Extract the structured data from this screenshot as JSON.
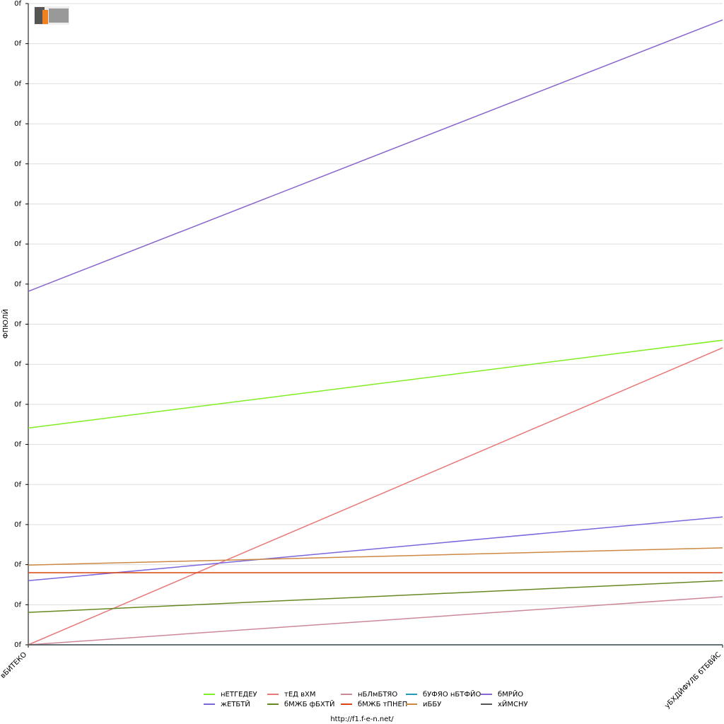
{
  "chart_data": {
    "type": "line",
    "y_label": "ФПЮЛЙ",
    "footer": "http://f1.f-e-n.net/",
    "categories": [
      "вБИТЕКО",
      "уБХДЙФУЛБ бТБВЙС"
    ],
    "ylim": [
      0,
      16
    ],
    "yticks": [
      {
        "value": 0,
        "label": "0f"
      },
      {
        "value": 1,
        "label": "0f"
      },
      {
        "value": 2,
        "label": "0f"
      },
      {
        "value": 3,
        "label": "0f"
      },
      {
        "value": 4,
        "label": "0f"
      },
      {
        "value": 5,
        "label": "0f"
      },
      {
        "value": 6,
        "label": "0f"
      },
      {
        "value": 7,
        "label": "0f"
      },
      {
        "value": 8,
        "label": "0f"
      },
      {
        "value": 9,
        "label": "0f"
      },
      {
        "value": 10,
        "label": "0f"
      },
      {
        "value": 11,
        "label": "0f"
      },
      {
        "value": 12,
        "label": "0f"
      },
      {
        "value": 13,
        "label": "0f"
      },
      {
        "value": 14,
        "label": "0f"
      },
      {
        "value": 15,
        "label": "0f"
      },
      {
        "value": 16,
        "label": "0f"
      }
    ],
    "grid": true,
    "series": [
      {
        "name": "нЕТГЕДЕУ",
        "color": "#80ee22",
        "values": [
          5.41,
          7.6
        ]
      },
      {
        "name": "тЕД вХМ",
        "color": "#e87878",
        "values": [
          0,
          7.41
        ]
      },
      {
        "name": "нБЛмБТЯО",
        "color": "#cc8899",
        "values": [
          0,
          1.2
        ]
      },
      {
        "name": "бУФЯО нБТФЙО",
        "color": "#2299bb",
        "values": [
          0,
          0
        ]
      },
      {
        "name": "бМРЙО",
        "color": "#8866cc",
        "values": [
          8.82,
          15.59
        ]
      },
      {
        "name": "жЕТБТЙ",
        "color": "#7a66dd",
        "values": [
          1.6,
          3.19
        ]
      },
      {
        "name": "бМЖБ фБХТЙ",
        "color": "#668822",
        "values": [
          0.81,
          1.6
        ]
      },
      {
        "name": "бМЖБ тПНЕП",
        "color": "#dd4411",
        "values": [
          1.8,
          1.8
        ]
      },
      {
        "name": "иББУ",
        "color": "#cc8844",
        "values": [
          1.99,
          2.42
        ]
      },
      {
        "name": "хЙМСНУ",
        "color": "#555555",
        "values": [
          0,
          0
        ]
      }
    ]
  }
}
